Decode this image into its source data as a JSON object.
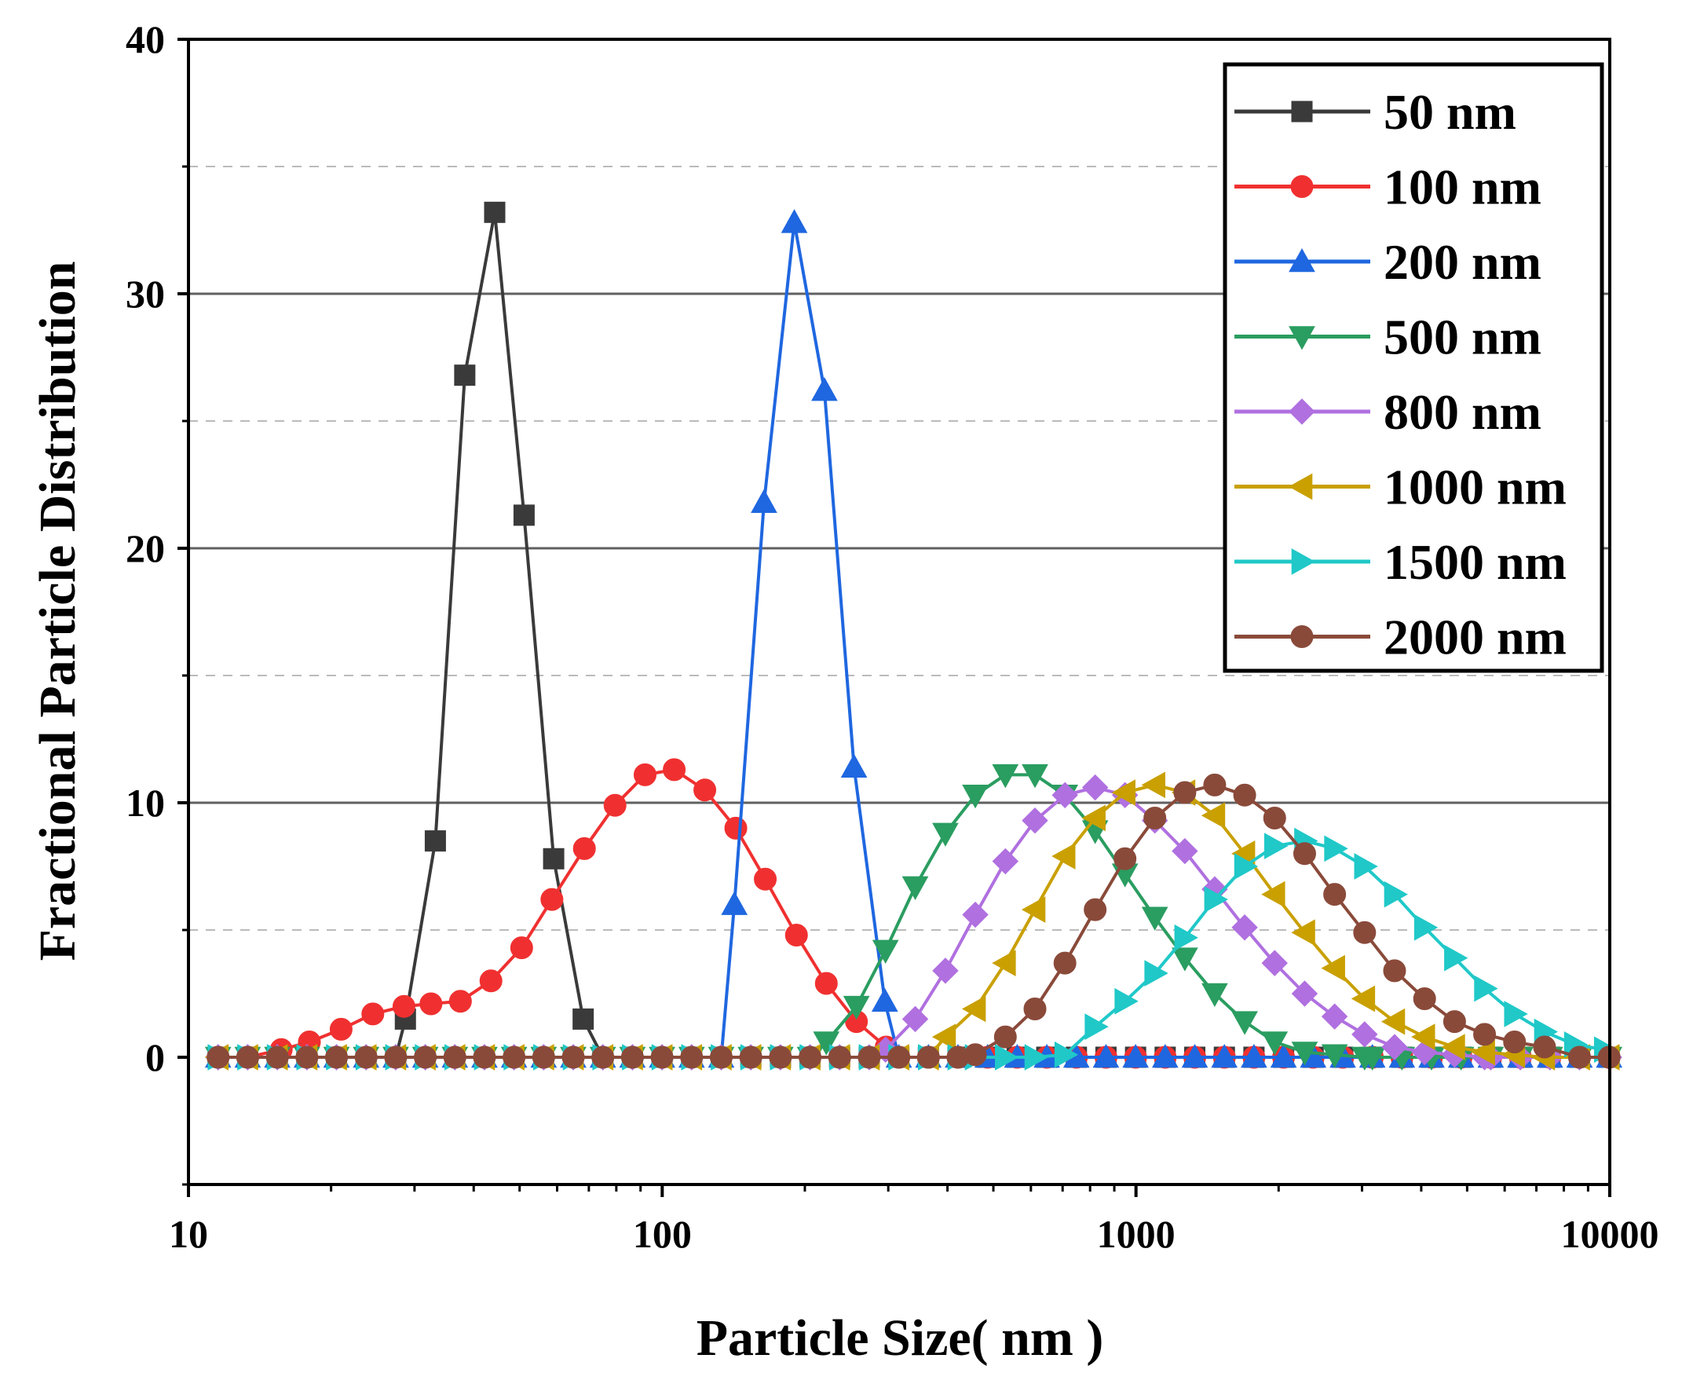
{
  "chart_data": {
    "type": "line",
    "title": "",
    "xlabel": "Particle Size( nm )",
    "ylabel": "Fractional Particle Distribution",
    "xscale": "log",
    "xlim": [
      10,
      10000
    ],
    "ylim": [
      -5,
      40
    ],
    "xticks": [
      10,
      100,
      1000,
      10000
    ],
    "xtick_labels": [
      "10",
      "100",
      "1000",
      "10000"
    ],
    "yticks": [
      0,
      10,
      20,
      30,
      40
    ],
    "ytick_labels": [
      "0",
      "10",
      "20",
      "30",
      "40"
    ],
    "major_gridlines_y": [
      10,
      20,
      30
    ],
    "minor_gridlines_y": [
      5,
      15,
      25,
      35
    ],
    "legend_position": "top-right",
    "series": [
      {
        "name": "50 nm",
        "color": "#3a3a3a",
        "marker": "square",
        "x": [
          28.7,
          33.2,
          38.3,
          44.3,
          51.1,
          59.0,
          68.1
        ],
        "y": [
          1.5,
          8.5,
          26.8,
          33.2,
          21.3,
          7.8,
          1.5
        ]
      },
      {
        "name": "100 nm",
        "color": "#f03030",
        "marker": "circle",
        "x": [
          15.7,
          18.0,
          21.0,
          24.5,
          28.5,
          32.5,
          37.5,
          43.5,
          50.5,
          58.5,
          68.5,
          79.5,
          92.0,
          106.0,
          123.0,
          143.0,
          165.0,
          192.0,
          222.0,
          257.0,
          297.0
        ],
        "y": [
          0.3,
          0.6,
          1.1,
          1.7,
          2.0,
          2.1,
          2.2,
          3.0,
          4.3,
          6.2,
          8.2,
          9.9,
          11.1,
          11.3,
          10.5,
          9.0,
          7.0,
          4.8,
          2.9,
          1.4,
          0.4
        ]
      },
      {
        "name": "200 nm",
        "color": "#1f67e0",
        "marker": "triangle-up",
        "x": [
          142.0,
          164.0,
          190.0,
          220.0,
          254.0,
          295.0
        ],
        "y": [
          6.0,
          21.8,
          32.8,
          26.2,
          11.4,
          2.2
        ]
      },
      {
        "name": "500 nm",
        "color": "#2a9d60",
        "marker": "triangle-down",
        "x": [
          222.0,
          257.0,
          296.0,
          342.0,
          396.0,
          458.0,
          530.0,
          612.0,
          708.0,
          820.0,
          948.0,
          1096.0,
          1268.0,
          1466.0,
          1696.0,
          1962.0,
          2270.0,
          2626.0,
          3038.0
        ],
        "y": [
          0.6,
          2.0,
          4.2,
          6.7,
          8.8,
          10.3,
          11.1,
          11.1,
          10.3,
          8.9,
          7.2,
          5.5,
          3.9,
          2.5,
          1.4,
          0.6,
          0.2,
          0.1,
          0.0
        ]
      },
      {
        "name": "800 nm",
        "color": "#b070e0",
        "marker": "diamond",
        "x": [
          296.0,
          342.0,
          396.0,
          458.0,
          530.0,
          612.0,
          708.0,
          820.0,
          948.0,
          1096.0,
          1268.0,
          1466.0,
          1696.0,
          1962.0,
          2270.0,
          2626.0,
          3038.0,
          3514.0,
          4066.0,
          4704.0,
          5442.0
        ],
        "y": [
          0.3,
          1.5,
          3.4,
          5.6,
          7.7,
          9.3,
          10.3,
          10.6,
          10.3,
          9.3,
          8.1,
          6.6,
          5.1,
          3.7,
          2.5,
          1.6,
          0.9,
          0.4,
          0.2,
          0.1,
          0.0
        ]
      },
      {
        "name": "1000 nm",
        "color": "#c9a000",
        "marker": "triangle-left",
        "x": [
          396.0,
          458.0,
          530.0,
          612.0,
          708.0,
          820.0,
          948.0,
          1096.0,
          1268.0,
          1466.0,
          1696.0,
          1962.0,
          2270.0,
          2626.0,
          3038.0,
          3514.0,
          4066.0,
          4704.0,
          5442.0,
          6296.0,
          7284.0
        ],
        "y": [
          0.8,
          1.9,
          3.7,
          5.8,
          7.9,
          9.4,
          10.4,
          10.7,
          10.4,
          9.5,
          8.0,
          6.4,
          4.9,
          3.5,
          2.3,
          1.4,
          0.8,
          0.4,
          0.2,
          0.1,
          0.0
        ]
      },
      {
        "name": "1500 nm",
        "color": "#20c8c8",
        "marker": "triangle-right",
        "x": [
          458.0,
          530.0,
          612.0,
          708.0,
          820.0,
          948.0,
          1096.0,
          1268.0,
          1466.0,
          1696.0,
          1962.0,
          2270.0,
          2626.0,
          3038.0,
          3514.0,
          4066.0,
          4704.0,
          5442.0,
          6296.0,
          7284.0,
          8426.0,
          9747.0
        ],
        "y": [
          0.0,
          0.0,
          0.0,
          0.1,
          1.2,
          2.2,
          3.3,
          4.7,
          6.2,
          7.5,
          8.3,
          8.5,
          8.2,
          7.5,
          6.4,
          5.1,
          3.9,
          2.7,
          1.7,
          1.0,
          0.5,
          0.3
        ]
      },
      {
        "name": "2000 nm",
        "color": "#8a4a3a",
        "marker": "circle",
        "x": [
          458.0,
          530.0,
          612.0,
          708.0,
          820.0,
          948.0,
          1096.0,
          1268.0,
          1466.0,
          1696.0,
          1962.0,
          2270.0,
          2626.0,
          3038.0,
          3514.0,
          4066.0,
          4704.0,
          5442.0,
          6296.0,
          7284.0
        ],
        "y": [
          0.1,
          0.8,
          1.9,
          3.7,
          5.8,
          7.8,
          9.4,
          10.4,
          10.7,
          10.3,
          9.4,
          8.0,
          6.4,
          4.9,
          3.4,
          2.3,
          1.4,
          0.9,
          0.6,
          0.4
        ]
      }
    ]
  }
}
